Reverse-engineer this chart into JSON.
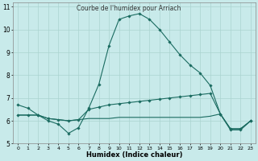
{
  "title": "Courbe de l'humidex pour Arriach",
  "xlabel": "Humidex (Indice chaleur)",
  "bg_color": "#c8eaea",
  "line_color": "#1a6b60",
  "grid_color": "#aad4d0",
  "xlim": [
    -0.5,
    23.5
  ],
  "ylim": [
    5.0,
    11.2
  ],
  "yticks": [
    5,
    6,
    7,
    8,
    9,
    10,
    11
  ],
  "xticks": [
    0,
    1,
    2,
    3,
    4,
    5,
    6,
    7,
    8,
    9,
    10,
    11,
    12,
    13,
    14,
    15,
    16,
    17,
    18,
    19,
    20,
    21,
    22,
    23
  ],
  "line1_x": [
    0,
    1,
    2,
    3,
    4,
    5,
    6,
    7,
    8,
    9,
    10,
    11,
    12,
    13,
    14,
    15,
    16,
    17,
    18,
    19,
    20,
    21,
    22,
    23
  ],
  "line1_y": [
    6.7,
    6.55,
    6.25,
    6.0,
    5.85,
    5.45,
    5.7,
    6.55,
    7.6,
    9.3,
    10.45,
    10.6,
    10.7,
    10.45,
    10.0,
    9.45,
    8.9,
    8.45,
    8.1,
    7.55,
    6.3,
    5.6,
    5.6,
    6.0
  ],
  "line2_x": [
    0,
    1,
    2,
    3,
    4,
    5,
    6,
    7,
    8,
    9,
    10,
    11,
    12,
    13,
    14,
    15,
    16,
    17,
    18,
    19,
    20,
    21,
    22,
    23
  ],
  "line2_y": [
    6.25,
    6.25,
    6.25,
    6.1,
    6.05,
    6.0,
    6.05,
    6.5,
    6.6,
    6.7,
    6.75,
    6.8,
    6.85,
    6.9,
    6.95,
    7.0,
    7.05,
    7.1,
    7.15,
    7.2,
    6.3,
    5.65,
    5.65,
    6.0
  ],
  "line3_x": [
    0,
    1,
    2,
    3,
    4,
    5,
    6,
    7,
    8,
    9,
    10,
    11,
    12,
    13,
    14,
    15,
    16,
    17,
    18,
    19,
    20,
    21,
    22,
    23
  ],
  "line3_y": [
    6.25,
    6.25,
    6.25,
    6.1,
    6.05,
    6.0,
    6.05,
    6.1,
    6.1,
    6.1,
    6.15,
    6.15,
    6.15,
    6.15,
    6.15,
    6.15,
    6.15,
    6.15,
    6.15,
    6.2,
    6.3,
    5.65,
    5.65,
    6.0
  ]
}
